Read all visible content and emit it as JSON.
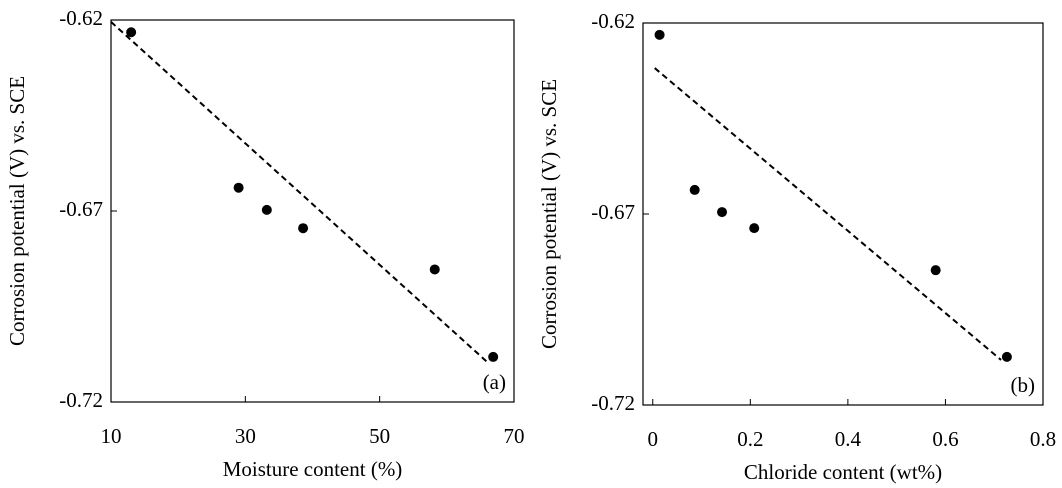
{
  "chart_data": [
    {
      "type": "scatter",
      "x_label": "Moisture content (%)",
      "y_label": "Corrosion potential (V) vs. SCE",
      "annotation": "(a)",
      "x": [
        13.0,
        29.0,
        33.2,
        38.6,
        58.2,
        66.9
      ],
      "values": [
        -0.6232,
        -0.6639,
        -0.6697,
        -0.6745,
        -0.6853,
        -0.7082
      ],
      "color": "#000000",
      "trendline": {
        "x": [
          10,
          66.3
        ],
        "values": [
          -0.6205,
          -0.71
        ]
      },
      "xlim": [
        10,
        70
      ],
      "xticks": [
        10,
        30,
        50,
        70
      ],
      "ylim": [
        -0.72,
        -0.62
      ],
      "yticks": [
        -0.72,
        -0.67,
        -0.62
      ]
    },
    {
      "type": "scatter",
      "x_label": "Chloride content (wt%)",
      "y_label": "Corrosion potential (V) vs. SCE",
      "annotation": "(b)",
      "x": [
        0.014,
        0.086,
        0.142,
        0.208,
        0.58,
        0.726
      ],
      "values": [
        -0.6231,
        -0.6637,
        -0.6695,
        -0.6737,
        -0.6847,
        -0.7074
      ],
      "color": "#000000",
      "trendline": {
        "x": [
          0.004,
          0.714
        ],
        "values": [
          -0.6318,
          -0.7082
        ]
      },
      "xlim": [
        -0.02,
        0.8
      ],
      "xticks": [
        0,
        0.2,
        0.4,
        0.6,
        0.8
      ],
      "ylim": [
        -0.72,
        -0.62
      ],
      "yticks": [
        -0.72,
        -0.67,
        -0.62
      ]
    }
  ]
}
